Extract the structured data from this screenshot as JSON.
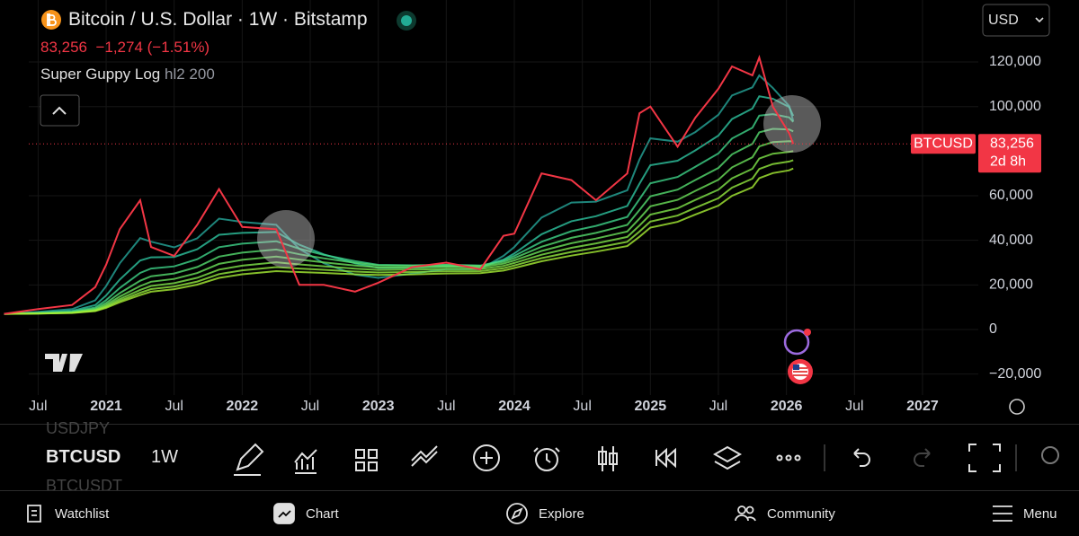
{
  "header": {
    "title": "Bitcoin / U.S. Dollar · 1W · Bitstamp",
    "price": "83,256",
    "change": "−1,274 (−1.51%)",
    "indicator": "Super Guppy Log",
    "indicator_params": "hl2 200",
    "currency": "USD"
  },
  "chart_data": {
    "type": "line",
    "color": "#f23645",
    "x": [
      2020.25,
      2020.5,
      2020.75,
      2020.92,
      2021.0,
      2021.1,
      2021.25,
      2021.33,
      2021.5,
      2021.67,
      2021.83,
      2022.0,
      2022.25,
      2022.42,
      2022.6,
      2022.83,
      2023.0,
      2023.25,
      2023.5,
      2023.75,
      2023.92,
      2024.0,
      2024.2,
      2024.42,
      2024.6,
      2024.83,
      2024.92,
      2025.0,
      2025.2,
      2025.33,
      2025.5,
      2025.6,
      2025.75,
      2025.8,
      2025.9,
      2026.02,
      2026.05
    ],
    "values": [
      7000,
      9200,
      11000,
      19000,
      29000,
      45000,
      58000,
      37000,
      33000,
      47000,
      63000,
      46000,
      45000,
      20000,
      20000,
      17000,
      21000,
      28000,
      30000,
      27000,
      42000,
      43000,
      70000,
      67000,
      58000,
      70000,
      97000,
      100000,
      82000,
      95000,
      108000,
      118000,
      114000,
      122000,
      100000,
      88000,
      83256
    ],
    "xlim": [
      2020.22,
      2027.41
    ],
    "ylim": [
      -29400,
      147800
    ],
    "xticks": [
      {
        "value": 2020.5,
        "label": "Jul"
      },
      2021,
      {
        "value": 2021.5,
        "label": "Jul"
      },
      2022,
      {
        "value": 2022.5,
        "label": "Jul"
      },
      2023,
      {
        "value": 2023.5,
        "label": "Jul"
      },
      2024,
      {
        "value": 2024.5,
        "label": "Jul"
      },
      2025,
      {
        "value": 2025.5,
        "label": "Jul"
      },
      2026,
      {
        "value": 2026.5,
        "label": "Jul"
      },
      2027
    ],
    "yticks": [
      {
        "value": 120000,
        "label": "120,000"
      },
      {
        "value": 100000,
        "label": "100,000"
      },
      {
        "value": 60000,
        "label": "60,000"
      },
      {
        "value": 40000,
        "label": "40,000"
      },
      {
        "value": 20000,
        "label": "20,000"
      },
      0,
      {
        "value": -20000,
        "label": "−20,000"
      }
    ],
    "grid": true,
    "price_line": {
      "value": 83256,
      "label": "83,256",
      "symbol": "BTCUSD",
      "countdown": "2d 8h"
    }
  },
  "toolbar": {
    "prev_symbol": "USDJPY",
    "symbol": "BTCUSD",
    "interval": "1W",
    "next_symbol": "BTCUSDT"
  },
  "nav": [
    "Watchlist",
    "Chart",
    "Explore",
    "Community",
    "Menu"
  ]
}
